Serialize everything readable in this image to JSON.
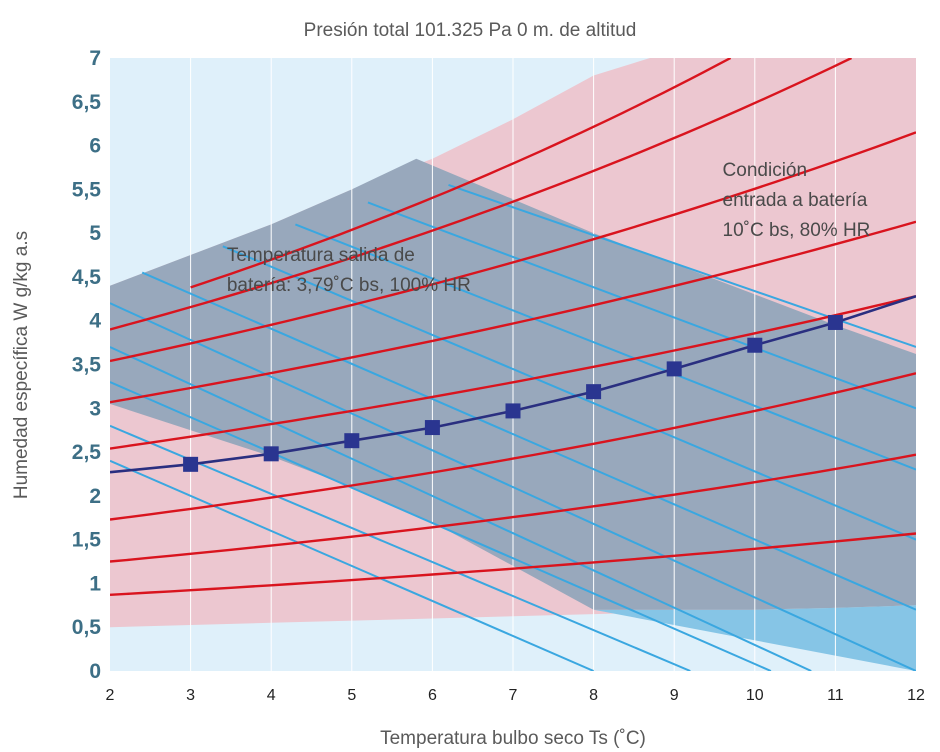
{
  "chart_data": {
    "type": "line",
    "title": "Presión total 101.325 Pa 0 m. de altitud",
    "xlabel": "Temperatura bulbo seco Ts (˚C)",
    "ylabel": "Humedad específica W g/kg a.s",
    "xlim": [
      2,
      12
    ],
    "ylim": [
      0,
      7
    ],
    "x_ticks": [
      "2",
      "3",
      "4",
      "5",
      "6",
      "7",
      "8",
      "9",
      "10",
      "11",
      "12"
    ],
    "y_ticks": [
      "0",
      "0,5",
      "1",
      "1,5",
      "2",
      "2,5",
      "3",
      "3,5",
      "4",
      "4,5",
      "5",
      "5,5",
      "6",
      "6,5",
      "7"
    ],
    "grid": "vertical",
    "annotations": [
      {
        "lines": [
          "Temperatura salida de",
          "batería: 3,79˚C bs, 100% HR"
        ]
      },
      {
        "lines": [
          "Condición",
          "entrada a batería",
          "10˚C bs, 80% HR"
        ]
      }
    ],
    "colors": {
      "background": "#dff0fa",
      "pink_band": "#ecc7d0",
      "gray_band": "#98a8bc",
      "light_blue_region": "#86c5e6",
      "relative_humidity_curves": "#d9141e",
      "enthalpy_lines": "#3aa7e0",
      "process_line": "#2a2f80",
      "markers": "#2a3590"
    },
    "process_series": {
      "x": [
        2,
        3,
        4,
        5,
        6,
        7,
        8,
        9,
        10,
        11,
        12
      ],
      "y": [
        2.27,
        2.36,
        2.48,
        2.63,
        2.78,
        2.97,
        3.19,
        3.45,
        3.72,
        3.98,
        4.28
      ]
    },
    "process_markers": {
      "x": [
        3,
        4,
        5,
        6,
        7,
        8,
        9,
        10,
        11
      ],
      "y": [
        2.36,
        2.48,
        2.63,
        2.78,
        2.97,
        3.19,
        3.45,
        3.72,
        3.98
      ]
    },
    "relative_humidity_curves": [
      {
        "x": [
          2,
          12
        ],
        "y": [
          0.87,
          1.57
        ]
      },
      {
        "x": [
          2,
          12
        ],
        "y": [
          1.25,
          2.47
        ]
      },
      {
        "x": [
          2,
          12
        ],
        "y": [
          1.73,
          3.4
        ]
      },
      {
        "x": [
          2,
          12
        ],
        "y": [
          2.54,
          4.28
        ]
      },
      {
        "x": [
          2,
          12
        ],
        "y": [
          3.07,
          5.13
        ]
      },
      {
        "x": [
          2,
          12
        ],
        "y": [
          3.54,
          6.15
        ]
      },
      {
        "x": [
          2,
          11.2
        ],
        "y": [
          3.9,
          7.0
        ]
      },
      {
        "x": [
          3,
          9.7
        ],
        "y": [
          4.38,
          7.0
        ]
      }
    ],
    "enthalpy_lines": [
      {
        "x": [
          2,
          8
        ],
        "y": [
          2.4,
          0.0
        ]
      },
      {
        "x": [
          2,
          9.2
        ],
        "y": [
          2.8,
          0.0
        ]
      },
      {
        "x": [
          2,
          10.2
        ],
        "y": [
          3.3,
          0.0
        ]
      },
      {
        "x": [
          2,
          10.7
        ],
        "y": [
          3.7,
          0.0
        ]
      },
      {
        "x": [
          2,
          12
        ],
        "y": [
          4.2,
          0.0
        ]
      },
      {
        "x": [
          2.4,
          12
        ],
        "y": [
          4.55,
          0.7
        ]
      },
      {
        "x": [
          3.4,
          12
        ],
        "y": [
          4.85,
          1.5
        ]
      },
      {
        "x": [
          4.3,
          12
        ],
        "y": [
          5.1,
          2.3
        ]
      },
      {
        "x": [
          5.2,
          12
        ],
        "y": [
          5.35,
          3.0
        ]
      },
      {
        "x": [
          6.2,
          12
        ],
        "y": [
          5.55,
          3.7
        ]
      }
    ],
    "gray_band": {
      "upper": {
        "x": [
          2,
          3,
          4,
          5,
          5.8,
          8,
          9,
          10,
          11,
          12
        ],
        "y": [
          4.4,
          4.75,
          5.1,
          5.5,
          5.85,
          5.0,
          4.65,
          4.3,
          3.95,
          3.62
        ]
      },
      "lower": {
        "x": [
          12,
          11,
          10,
          9,
          8,
          7,
          6,
          5,
          4,
          3,
          2
        ],
        "y": [
          0.75,
          0.72,
          0.7,
          0.7,
          0.7,
          1.2,
          1.7,
          2.1,
          2.45,
          2.75,
          3.05
        ]
      }
    },
    "pink_band": {
      "upper": {
        "x": [
          2,
          3,
          4,
          5,
          6,
          7,
          8,
          8.7,
          12
        ],
        "y": [
          4.4,
          4.75,
          5.1,
          5.5,
          5.85,
          6.3,
          6.8,
          7.0,
          7.0
        ]
      },
      "lower": {
        "x": [
          12,
          10,
          8,
          6,
          4,
          2
        ],
        "y": [
          0.78,
          0.7,
          0.65,
          0.6,
          0.55,
          0.5
        ]
      }
    },
    "light_blue_region": {
      "x": [
        8,
        9,
        10,
        11,
        12,
        12
      ],
      "y": [
        0.7,
        0.7,
        0.7,
        0.72,
        0.75,
        0.0
      ]
    }
  }
}
